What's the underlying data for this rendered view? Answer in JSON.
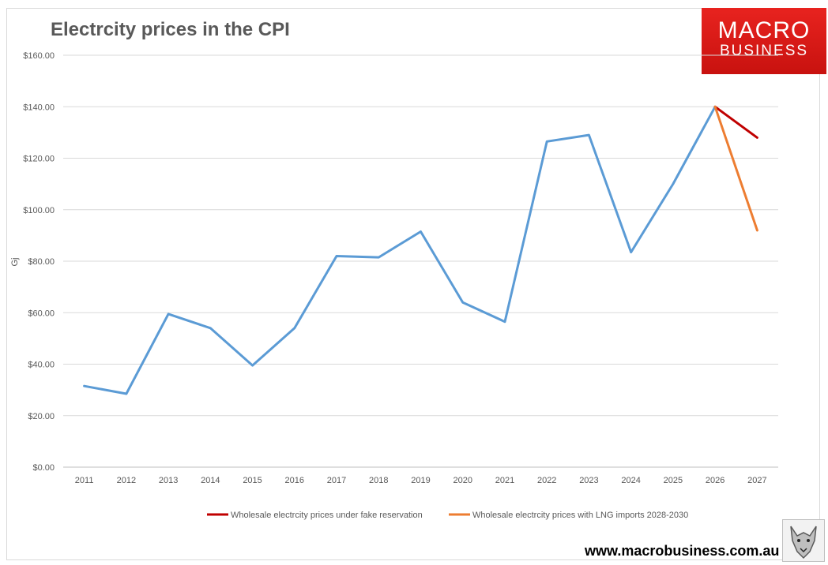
{
  "chart_data": {
    "type": "line",
    "title": "Electrcity prices in the CPI",
    "xlabel": "",
    "ylabel": "Gj",
    "categories": [
      "2011",
      "2012",
      "2013",
      "2014",
      "2015",
      "2016",
      "2017",
      "2018",
      "2019",
      "2020",
      "2021",
      "2022",
      "2023",
      "2024",
      "2025",
      "2026",
      "2027"
    ],
    "ylim": [
      0,
      160
    ],
    "yticks": [
      0,
      20,
      40,
      60,
      80,
      100,
      120,
      140,
      160
    ],
    "ytick_labels": [
      "$0.00",
      "$20.00",
      "$40.00",
      "$60.00",
      "$80.00",
      "$100.00",
      "$120.00",
      "$140.00",
      "$160.00"
    ],
    "grid": "horizontal",
    "legend_position": "bottom",
    "series": [
      {
        "name": "",
        "color": "#5b9bd5",
        "values": [
          31.5,
          28.5,
          59.5,
          54.0,
          39.5,
          54.0,
          82.0,
          81.5,
          91.5,
          64.0,
          56.5,
          126.5,
          129.0,
          83.5,
          110.0,
          140.0,
          null
        ]
      },
      {
        "name": "Wholesale electrcity prices under fake reservation",
        "color": "#c00000",
        "values": [
          null,
          null,
          null,
          null,
          null,
          null,
          null,
          null,
          null,
          null,
          null,
          null,
          null,
          null,
          null,
          140.0,
          128.0
        ]
      },
      {
        "name": "Wholesale electrcity prices with LNG imports 2028-2030",
        "color": "#ed7d31",
        "values": [
          null,
          null,
          null,
          null,
          null,
          null,
          null,
          null,
          null,
          null,
          null,
          null,
          null,
          null,
          null,
          140.0,
          92.0
        ]
      }
    ]
  },
  "branding": {
    "logo_line1": "MACRO",
    "logo_line2": "BUSINESS",
    "logo_color": "#e8231f",
    "url": "www.macrobusiness.com.au",
    "mascot_icon": "wolf-icon"
  }
}
